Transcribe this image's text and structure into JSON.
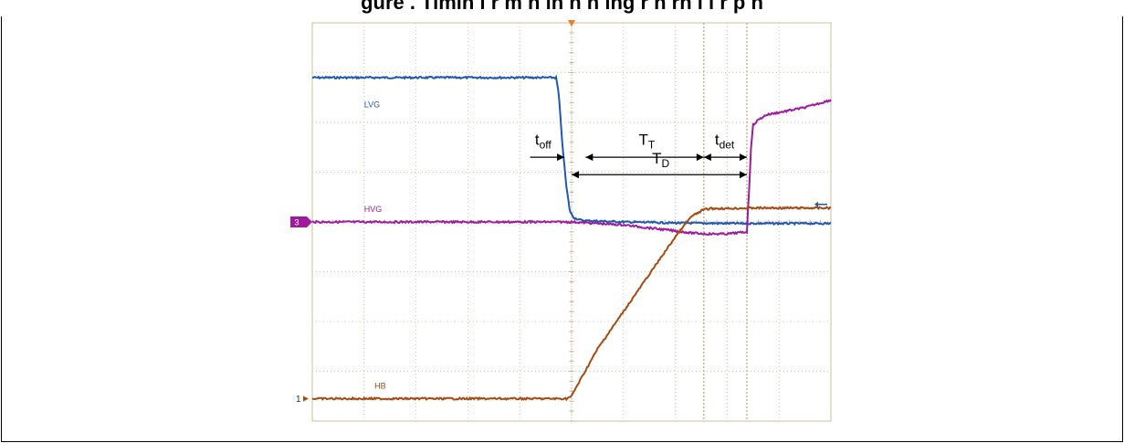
{
  "figure": {
    "caption_fragment": "gure   . Timin  i   r m  h  in  h    n    ing   r  n  rn   i      i r   p    n   "
  },
  "chart_data": {
    "type": "line",
    "title": "",
    "xlabel": "",
    "ylabel": "",
    "grid": true,
    "xlim": [
      0,
      10
    ],
    "ylim": [
      -4,
      4
    ],
    "trigger_x": 5.0,
    "cursor_x": [
      7.55,
      8.38
    ],
    "series": [
      {
        "name": "LVG",
        "color": "#2057b4",
        "x": [
          0,
          4.7,
          4.75,
          4.82,
          4.9,
          4.97,
          5.05,
          5.2,
          6.0,
          7.0,
          8.0,
          9.0,
          10.0
        ],
        "y": [
          2.9,
          2.9,
          2.6,
          1.6,
          0.7,
          0.2,
          0.08,
          0.03,
          0.0,
          -0.02,
          -0.03,
          -0.03,
          -0.03
        ]
      },
      {
        "name": "HVG",
        "color": "#a01aa0",
        "x": [
          0,
          5.0,
          6.0,
          6.5,
          7.0,
          7.3,
          7.6,
          8.0,
          8.38,
          8.42,
          8.46,
          8.5,
          8.6,
          8.75,
          9.0,
          9.5,
          10.0
        ],
        "y": [
          0.0,
          0.0,
          -0.06,
          -0.12,
          -0.18,
          -0.22,
          -0.24,
          -0.24,
          -0.2,
          0.6,
          1.5,
          1.95,
          2.05,
          2.15,
          2.2,
          2.3,
          2.45
        ]
      },
      {
        "name": "HB",
        "color": "#a64a10",
        "x": [
          0,
          4.9,
          5.0,
          5.1,
          5.5,
          6.0,
          6.5,
          7.0,
          7.3,
          7.55,
          7.7,
          8.0,
          8.5,
          9.0,
          10.0
        ],
        "y": [
          -3.55,
          -3.55,
          -3.5,
          -3.3,
          -2.55,
          -1.8,
          -1.05,
          -0.3,
          0.1,
          0.25,
          0.27,
          0.27,
          0.28,
          0.28,
          0.28
        ]
      }
    ],
    "trace_labels": [
      {
        "text": "LVG",
        "x": 1.0,
        "y": 2.3,
        "color": "#2057b4"
      },
      {
        "text": "HVG",
        "x": 1.0,
        "y": 0.2,
        "color": "#a01aa0"
      },
      {
        "text": "HB",
        "x": 1.2,
        "y": -3.35,
        "color": "#a64a10"
      }
    ],
    "annotations": [
      {
        "kind": "arrow",
        "main": "t",
        "sub": "off",
        "x1": 4.2,
        "x2": 4.86,
        "y": 1.3,
        "label_x": 4.45,
        "label_y": 1.55
      },
      {
        "kind": "double-arrow",
        "main": "T",
        "sub": "T",
        "x1": 5.27,
        "x2": 7.55,
        "y": 1.3,
        "label_x": 6.45,
        "label_y": 1.55
      },
      {
        "kind": "double-arrow",
        "main": "t",
        "sub": "det",
        "x1": 7.55,
        "x2": 8.38,
        "y": 1.3,
        "label_x": 7.95,
        "label_y": 1.55
      },
      {
        "kind": "double-arrow",
        "main": "T",
        "sub": "D",
        "x1": 5.0,
        "x2": 8.38,
        "y": 0.95,
        "label_x": 6.72,
        "label_y": 1.17
      }
    ],
    "ground_markers": [
      {
        "text": "3",
        "y": 0.0
      },
      {
        "text": "1",
        "y": -3.55
      }
    ]
  }
}
